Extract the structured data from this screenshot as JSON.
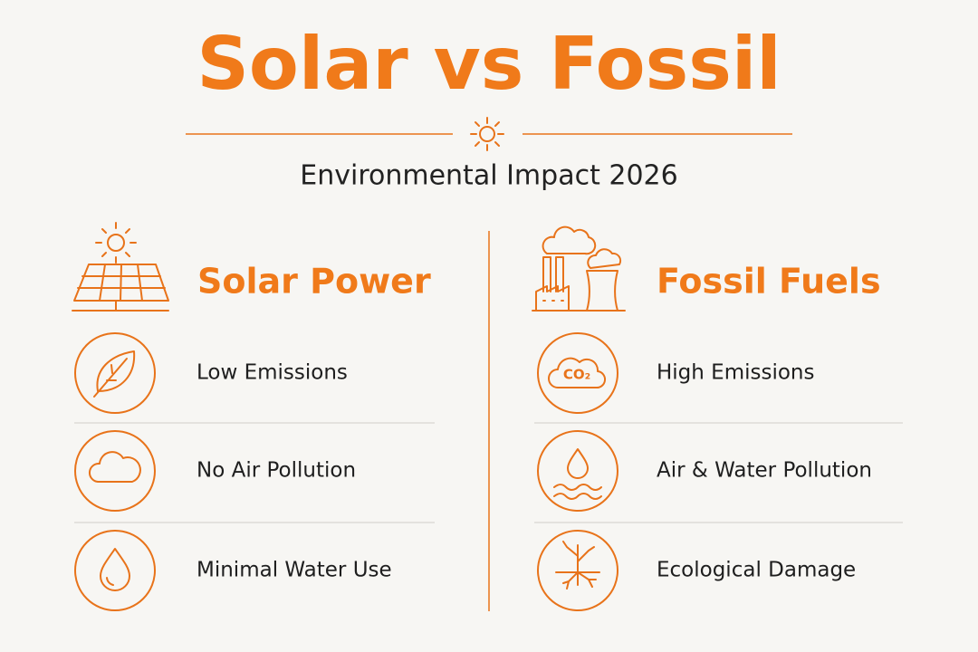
{
  "header": {
    "title": "Solar vs Fossil",
    "subtitle": "Environmental Impact 2026"
  },
  "columns": [
    {
      "title": "Solar Power",
      "items": [
        {
          "label": "Low Emissions"
        },
        {
          "label": "No Air Pollution"
        },
        {
          "label": "Minimal Water Use"
        }
      ]
    },
    {
      "title": "Fossil Fuels",
      "items": [
        {
          "label": "High Emissions",
          "icon_text": "CO₂"
        },
        {
          "label": "Air & Water Pollution"
        },
        {
          "label": "Ecological Damage"
        }
      ]
    }
  ]
}
